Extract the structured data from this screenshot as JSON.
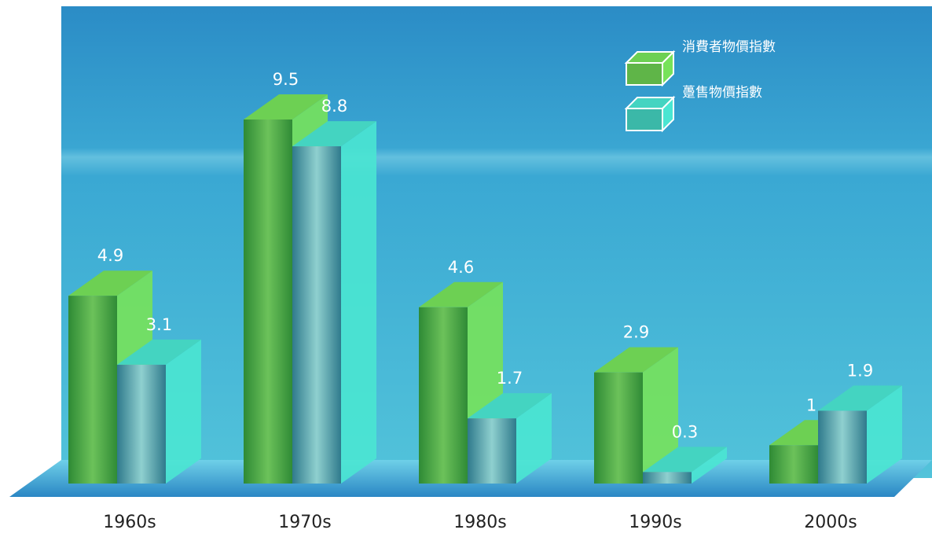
{
  "chart_data": {
    "type": "bar3d",
    "categories": [
      "1960s",
      "1970s",
      "1980s",
      "1990s",
      "2000s"
    ],
    "series": [
      {
        "name": "消費者物價指數",
        "color": "#5fb548",
        "values": [
          4.9,
          9.5,
          4.6,
          2.9,
          1.0
        ]
      },
      {
        "name": "躉售物價指數",
        "color": "#3bb8a8",
        "values": [
          3.1,
          8.8,
          1.7,
          0.3,
          1.9
        ]
      }
    ],
    "legend": "top-right"
  }
}
